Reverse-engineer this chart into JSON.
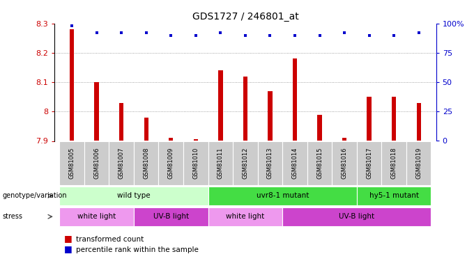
{
  "title": "GDS1727 / 246801_at",
  "samples": [
    "GSM81005",
    "GSM81006",
    "GSM81007",
    "GSM81008",
    "GSM81009",
    "GSM81010",
    "GSM81011",
    "GSM81012",
    "GSM81013",
    "GSM81014",
    "GSM81015",
    "GSM81016",
    "GSM81017",
    "GSM81018",
    "GSM81019"
  ],
  "bar_values": [
    8.28,
    8.1,
    8.03,
    7.98,
    7.91,
    7.905,
    8.14,
    8.12,
    8.07,
    8.18,
    7.99,
    7.91,
    8.05,
    8.05,
    8.03
  ],
  "dot_values": [
    98,
    92,
    92,
    92,
    90,
    90,
    92,
    90,
    90,
    90,
    90,
    92,
    90,
    90,
    92
  ],
  "ylim": [
    7.9,
    8.3
  ],
  "yticks": [
    7.9,
    8.0,
    8.1,
    8.2,
    8.3
  ],
  "ytick_labels": [
    "7.9",
    "8",
    "8.1",
    "8.2",
    "8.3"
  ],
  "y2lim": [
    0,
    100
  ],
  "y2ticks": [
    0,
    25,
    50,
    75,
    100
  ],
  "y2tick_labels": [
    "0",
    "25",
    "50",
    "75",
    "100%"
  ],
  "bar_color": "#cc0000",
  "dot_color": "#0000cc",
  "bar_bottom": 7.9,
  "genotype_row": [
    {
      "label": "wild type",
      "start": 0,
      "end": 6,
      "color": "#ccffcc"
    },
    {
      "label": "uvr8-1 mutant",
      "start": 6,
      "end": 12,
      "color": "#44dd44"
    },
    {
      "label": "hy5-1 mutant",
      "start": 12,
      "end": 15,
      "color": "#44dd44"
    }
  ],
  "stress_row": [
    {
      "label": "white light",
      "start": 0,
      "end": 3,
      "color": "#ee99ee"
    },
    {
      "label": "UV-B light",
      "start": 3,
      "end": 6,
      "color": "#cc44cc"
    },
    {
      "label": "white light",
      "start": 6,
      "end": 9,
      "color": "#ee99ee"
    },
    {
      "label": "UV-B light",
      "start": 9,
      "end": 15,
      "color": "#cc44cc"
    }
  ],
  "legend_items": [
    {
      "color": "#cc0000",
      "label": "transformed count"
    },
    {
      "color": "#0000cc",
      "label": "percentile rank within the sample"
    }
  ],
  "background_color": "#ffffff",
  "grid_color": "#888888",
  "sample_label_bg": "#cccccc",
  "bar_width": 0.18
}
